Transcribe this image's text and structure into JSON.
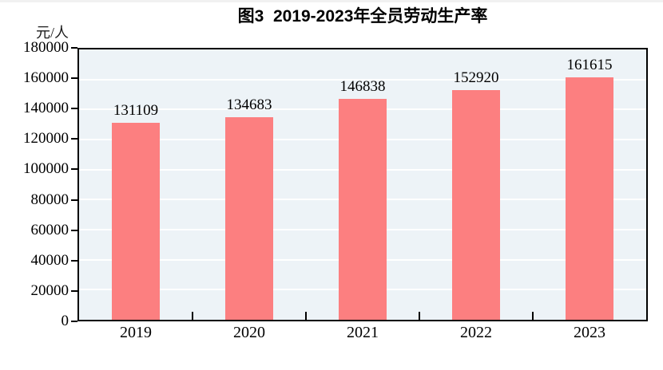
{
  "page": {
    "title": "图3  2019-2023年全员劳动生产率",
    "unit_label": "元/人"
  },
  "chart_data": {
    "type": "bar",
    "title": "图3  2019-2023年全员劳动生产率",
    "categories": [
      "2019",
      "2020",
      "2021",
      "2022",
      "2023"
    ],
    "values": [
      131109,
      134683,
      146838,
      152920,
      161615
    ],
    "data_labels": [
      "131109",
      "134683",
      "146838",
      "152920",
      "161615"
    ],
    "xlabel": "",
    "ylabel": "元/人",
    "ylim": [
      0,
      180000
    ],
    "yticks": [
      0,
      20000,
      40000,
      60000,
      80000,
      100000,
      120000,
      140000,
      160000,
      180000
    ],
    "ytick_labels": [
      "0",
      "20000",
      "40000",
      "60000",
      "80000",
      "100000",
      "120000",
      "140000",
      "160000",
      "180000"
    ],
    "grid": true,
    "legend_position": "none",
    "colors": {
      "bar": "#fc7f80",
      "plot_background": "#edf3f7",
      "gridline": "#ffffff",
      "axis": "#000000",
      "text": "#000000"
    }
  }
}
